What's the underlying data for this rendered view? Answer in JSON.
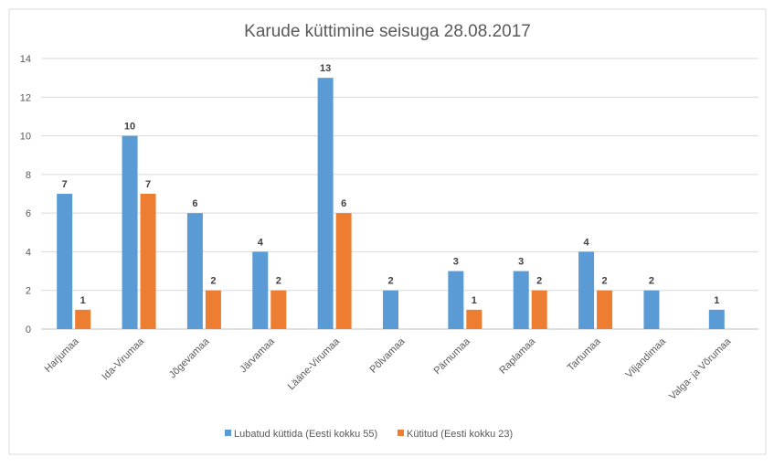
{
  "chart_data": {
    "type": "bar",
    "title": "Karude küttimine seisuga 28.08.2017",
    "xlabel": "",
    "ylabel": "",
    "ylim": [
      0,
      14
    ],
    "yticks": [
      0,
      2,
      4,
      6,
      8,
      10,
      12,
      14
    ],
    "grid": true,
    "legend_position": "bottom",
    "categories": [
      "Harjumaa",
      "Ida-Virumaa",
      "Jõgevamaa",
      "Järvamaa",
      "Lääne-Virumaa",
      "Põlvamaa",
      "Pärnumaa",
      "Raplamaa",
      "Tartumaa",
      "Viljandimaa",
      "Valga- ja Võrumaa"
    ],
    "series": [
      {
        "name": "Lubatud küttida (Eesti kokku 55)",
        "color": "#5B9BD5",
        "values": [
          7,
          10,
          6,
          4,
          13,
          2,
          3,
          3,
          4,
          2,
          1
        ]
      },
      {
        "name": "Kütitud (Eesti kokku 23)",
        "color": "#ED7D31",
        "values": [
          1,
          7,
          2,
          2,
          6,
          null,
          1,
          2,
          2,
          null,
          null
        ]
      }
    ]
  }
}
